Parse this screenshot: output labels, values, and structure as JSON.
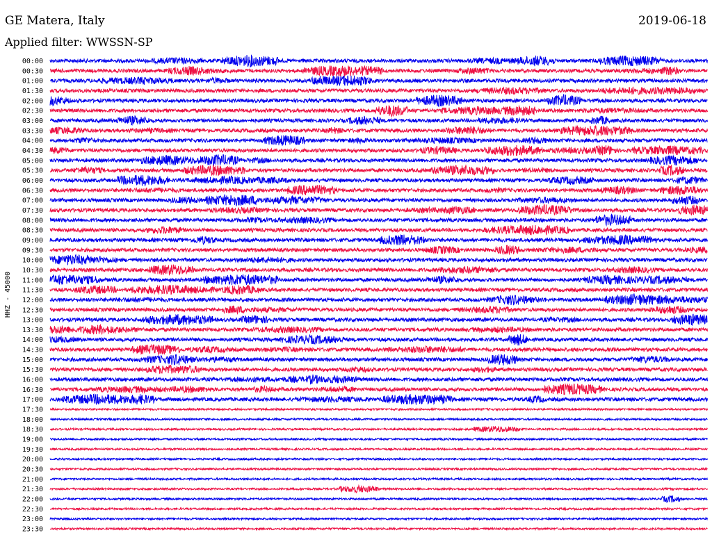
{
  "header": {
    "station": "GE Matera, Italy",
    "date": "2019-06-18",
    "filter_label": "Applied filter: WWSSN-SP"
  },
  "chart_data": {
    "type": "line",
    "chart_kind": "helicorder",
    "ylabel": "HHZ - 45000",
    "tick_labels": [
      "00:00",
      "00:30",
      "01:00",
      "01:30",
      "02:00",
      "02:30",
      "03:00",
      "03:30",
      "04:00",
      "04:30",
      "05:00",
      "05:30",
      "06:00",
      "06:30",
      "07:00",
      "07:30",
      "08:00",
      "08:30",
      "09:00",
      "09:30",
      "10:00",
      "10:30",
      "11:00",
      "11:30",
      "12:00",
      "12:30",
      "13:00",
      "13:30",
      "14:00",
      "14:30",
      "15:00",
      "15:30",
      "16:00",
      "16:30",
      "17:00",
      "17:30",
      "18:00",
      "18:30",
      "19:00",
      "19:30",
      "20:00",
      "20:30",
      "21:00",
      "21:30",
      "22:00",
      "22:30",
      "23:00",
      "23:30"
    ],
    "trace_colors": [
      "#0000ee",
      "#ee1144"
    ],
    "grid": false,
    "traces_with_signal": 35,
    "line_interval_minutes": 30
  }
}
